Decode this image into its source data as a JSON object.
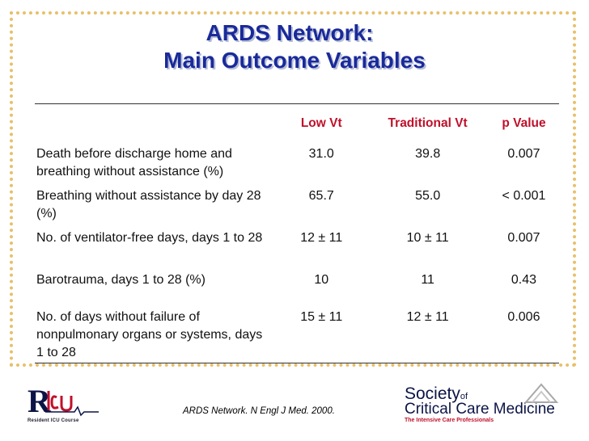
{
  "slide": {
    "title_line1": "ARDS Network:",
    "title_line2": "Main Outcome Variables"
  },
  "table": {
    "headers": [
      "",
      "Low Vt",
      "Traditional Vt",
      "p Value"
    ],
    "rows": [
      {
        "variable": "Death before discharge home and breathing without assistance (%)",
        "low_vt": "31.0",
        "traditional_vt": "39.8",
        "p_value": "0.007"
      },
      {
        "variable": "Breathing without assistance by day 28 (%)",
        "low_vt": "65.7",
        "traditional_vt": "55.0",
        "p_value": "< 0.001"
      },
      {
        "variable": "No. of ventilator-free days, days 1 to 28",
        "low_vt": "12 ± 11",
        "traditional_vt": "10 ± 11",
        "p_value": "0.007"
      },
      {
        "variable": "Barotrauma, days 1 to 28 (%)",
        "low_vt": "10",
        "traditional_vt": "11",
        "p_value": "0.43"
      },
      {
        "variable": "No. of days without failure of nonpulmonary organs or systems, days 1 to 28",
        "low_vt": "15 ± 11",
        "traditional_vt": "12 ± 11",
        "p_value": "0.006"
      }
    ]
  },
  "citation": "ARDS Network. N Engl J Med. 2000.",
  "logos": {
    "left_tagline": "Resident ICU Course",
    "right_line1": "Society",
    "right_of": "of",
    "right_line2": "Critical Care Medicine",
    "right_tagline": "The Intensive Care Professionals"
  },
  "colors": {
    "title": "#1a2a9a",
    "header": "#c0102a",
    "frame": "#e8c06a"
  }
}
